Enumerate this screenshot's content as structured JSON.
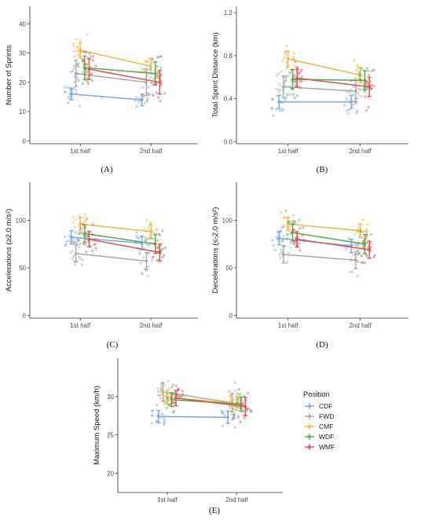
{
  "legend": {
    "title": "Position",
    "entries": [
      {
        "label": "CDF",
        "color": "#78a6e6"
      },
      {
        "label": "FWD",
        "color": "#a8a8a8"
      },
      {
        "label": "CMF",
        "color": "#f2b545"
      },
      {
        "label": "WDF",
        "color": "#4dab4d"
      },
      {
        "label": "WMF",
        "color": "#e0504c"
      }
    ]
  },
  "chart_data": [
    {
      "panel": "(A)",
      "type": "scatter",
      "categories": [
        "1st half",
        "2nd half"
      ],
      "ylabel": "Number of Sprints",
      "ylim": [
        -1,
        46
      ],
      "yticks": [
        0,
        10,
        20,
        30,
        40
      ],
      "series": [
        {
          "name": "CDF",
          "means": [
            16,
            14
          ],
          "ci": [
            2,
            2
          ]
        },
        {
          "name": "FWD",
          "means": [
            23,
            20
          ],
          "ci": [
            4.5,
            4.5
          ]
        },
        {
          "name": "CMF",
          "means": [
            31,
            25.5
          ],
          "ci": [
            2.5,
            2.5
          ]
        },
        {
          "name": "WDF",
          "means": [
            25,
            23
          ],
          "ci": [
            4,
            4
          ]
        },
        {
          "name": "WMF",
          "means": [
            24.5,
            20
          ],
          "ci": [
            3.5,
            4
          ]
        }
      ]
    },
    {
      "panel": "(B)",
      "type": "scatter",
      "categories": [
        "1st half",
        "2nd half"
      ],
      "ylabel": "Total Sprint Distance (km)",
      "ylim": [
        -0.02,
        1.26
      ],
      "yticks": [
        0.0,
        0.4,
        0.8,
        1.2
      ],
      "ytick_labels": [
        "0.0",
        "0.4",
        "0.8",
        "1.2"
      ],
      "series": [
        {
          "name": "CDF",
          "means": [
            0.37,
            0.37
          ],
          "ci": [
            0.06,
            0.06
          ]
        },
        {
          "name": "FWD",
          "means": [
            0.51,
            0.47
          ],
          "ci": [
            0.1,
            0.1
          ]
        },
        {
          "name": "CMF",
          "means": [
            0.77,
            0.62
          ],
          "ci": [
            0.07,
            0.07
          ]
        },
        {
          "name": "WDF",
          "means": [
            0.58,
            0.57
          ],
          "ci": [
            0.09,
            0.09
          ]
        },
        {
          "name": "WMF",
          "means": [
            0.59,
            0.51
          ],
          "ci": [
            0.08,
            0.09
          ]
        }
      ]
    },
    {
      "panel": "(C)",
      "type": "scatter",
      "categories": [
        "1st half",
        "2nd half"
      ],
      "ylabel": "Accelerations (≥2.0 m/s²)",
      "ylim": [
        -3,
        140
      ],
      "yticks": [
        0,
        50,
        100
      ],
      "series": [
        {
          "name": "CDF",
          "means": [
            82,
            76
          ],
          "ci": [
            7,
            7
          ]
        },
        {
          "name": "FWD",
          "means": [
            65,
            57
          ],
          "ci": [
            9,
            9
          ]
        },
        {
          "name": "CMF",
          "means": [
            96,
            88
          ],
          "ci": [
            7,
            7
          ]
        },
        {
          "name": "WDF",
          "means": [
            86,
            75
          ],
          "ci": [
            9,
            10
          ]
        },
        {
          "name": "WMF",
          "means": [
            80,
            66
          ],
          "ci": [
            8,
            9
          ]
        }
      ]
    },
    {
      "panel": "(D)",
      "type": "scatter",
      "categories": [
        "1st half",
        "2nd half"
      ],
      "ylabel": "Decelerations (≤-2.0 m/s²)",
      "ylim": [
        -3,
        140
      ],
      "yticks": [
        0,
        50,
        100
      ],
      "series": [
        {
          "name": "CDF",
          "means": [
            81,
            73
          ],
          "ci": [
            7,
            7
          ]
        },
        {
          "name": "FWD",
          "means": [
            64,
            58
          ],
          "ci": [
            9,
            9
          ]
        },
        {
          "name": "CMF",
          "means": [
            96,
            89
          ],
          "ci": [
            7,
            7
          ]
        },
        {
          "name": "WDF",
          "means": [
            87,
            75
          ],
          "ci": [
            9,
            10
          ]
        },
        {
          "name": "WMF",
          "means": [
            80,
            69
          ],
          "ci": [
            8,
            9
          ]
        }
      ]
    },
    {
      "panel": "(E)",
      "type": "scatter",
      "categories": [
        "1st half",
        "2nd half"
      ],
      "ylabel": "Maximum Speed (km/h)",
      "ylim": [
        17.5,
        35
      ],
      "yticks": [
        20,
        25,
        30
      ],
      "series": [
        {
          "name": "CDF",
          "means": [
            27.4,
            27.3
          ],
          "ci": [
            0.8,
            0.8
          ]
        },
        {
          "name": "FWD",
          "means": [
            30.6,
            29.2
          ],
          "ci": [
            1.2,
            1.2
          ]
        },
        {
          "name": "CMF",
          "means": [
            29.9,
            29.1
          ],
          "ci": [
            0.9,
            0.9
          ]
        },
        {
          "name": "WDF",
          "means": [
            29.6,
            29.0
          ],
          "ci": [
            0.9,
            0.9
          ]
        },
        {
          "name": "WMF",
          "means": [
            29.8,
            28.7
          ],
          "ci": [
            1.0,
            1.2
          ]
        }
      ]
    }
  ]
}
